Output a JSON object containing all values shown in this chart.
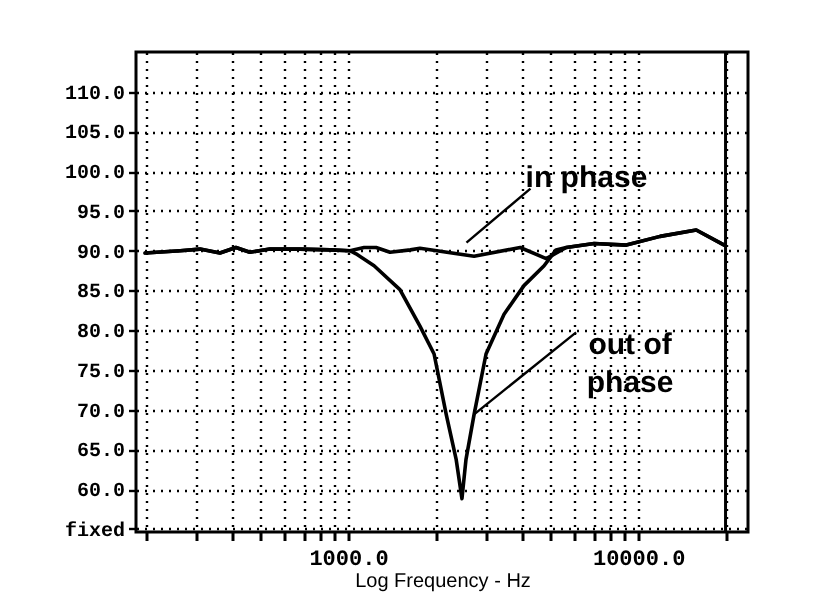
{
  "chart_data": {
    "type": "line",
    "xlabel": "Log Frequency - Hz",
    "log": "x",
    "grid": true,
    "line_style": "solid",
    "xlim": [
      186,
      23900
    ],
    "xticks": [
      {
        "value": 200,
        "label": null
      },
      {
        "value": 300,
        "label": null
      },
      {
        "value": 400,
        "label": null
      },
      {
        "value": 500,
        "label": null
      },
      {
        "value": 600,
        "label": null
      },
      {
        "value": 700,
        "label": null
      },
      {
        "value": 800,
        "label": null
      },
      {
        "value": 900,
        "label": null
      },
      {
        "value": 1000,
        "label": "1000.0"
      },
      {
        "value": 2000,
        "label": null
      },
      {
        "value": 3000,
        "label": null
      },
      {
        "value": 4000,
        "label": null
      },
      {
        "value": 5000,
        "label": null
      },
      {
        "value": 6000,
        "label": null
      },
      {
        "value": 7000,
        "label": null
      },
      {
        "value": 8000,
        "label": null
      },
      {
        "value": 9000,
        "label": null
      },
      {
        "value": 10000,
        "label": "10000.0"
      },
      {
        "value": 20000,
        "label": null
      }
    ],
    "ylim": [
      54.6,
      115
    ],
    "yticks": [
      {
        "value": 55,
        "label": "fixed"
      },
      {
        "value": 60,
        "label": "60.0"
      },
      {
        "value": 65,
        "label": "65.0"
      },
      {
        "value": 70,
        "label": "70.0"
      },
      {
        "value": 75,
        "label": "75.0"
      },
      {
        "value": 80,
        "label": "80.0"
      },
      {
        "value": 85,
        "label": "85.0"
      },
      {
        "value": 90,
        "label": "90.0"
      },
      {
        "value": 95,
        "label": "95.0"
      },
      {
        "value": 100,
        "label": "100.0"
      },
      {
        "value": 105,
        "label": "105.0"
      },
      {
        "value": 110,
        "label": "110.0"
      }
    ],
    "ref_lines": [
      {
        "axis": "x",
        "value": 20000,
        "color": "#000000"
      }
    ],
    "series": [
      {
        "color": "#000000",
        "x": [
          200,
          264,
          309,
          362,
          411,
          459,
          538,
          683,
          867,
          1016,
          1136,
          1250,
          1396,
          1640,
          1770,
          2720,
          3920,
          4820,
          5650,
          7050,
          9100,
          11900,
          15850,
          19800
        ],
        "values": [
          89.7,
          90.0,
          90.2,
          89.7,
          90.4,
          89.8,
          90.2,
          90.2,
          90.1,
          90.0,
          90.4,
          90.4,
          89.8,
          90.1,
          90.3,
          89.3,
          90.4,
          89.0,
          90.4,
          90.9,
          90.7,
          91.8,
          92.6,
          90.7
        ]
      },
      {
        "color": "#000000",
        "x": [
          200,
          264,
          309,
          362,
          411,
          459,
          538,
          683,
          867,
          1016,
          1066,
          1230,
          1510,
          1770,
          1980,
          2180,
          2360,
          2470,
          2550,
          2720,
          2990,
          3450,
          4040,
          4740,
          5210,
          5650,
          7050,
          9100,
          11900,
          15850,
          19800
        ],
        "values": [
          89.7,
          90.0,
          90.2,
          89.7,
          90.4,
          89.8,
          90.2,
          90.2,
          90.1,
          90.0,
          89.6,
          88.1,
          85.1,
          80.5,
          77.0,
          69.4,
          63.7,
          58.8,
          63.7,
          69.4,
          77.0,
          82.0,
          85.6,
          88.1,
          90.1,
          90.4,
          90.9,
          90.7,
          91.8,
          92.6,
          90.7
        ]
      }
    ],
    "annotations": [
      {
        "text": "in phase",
        "x": 2560,
        "y": 90
      },
      {
        "text": "out of\nphase",
        "x": 2720,
        "y": 69.4
      }
    ]
  }
}
